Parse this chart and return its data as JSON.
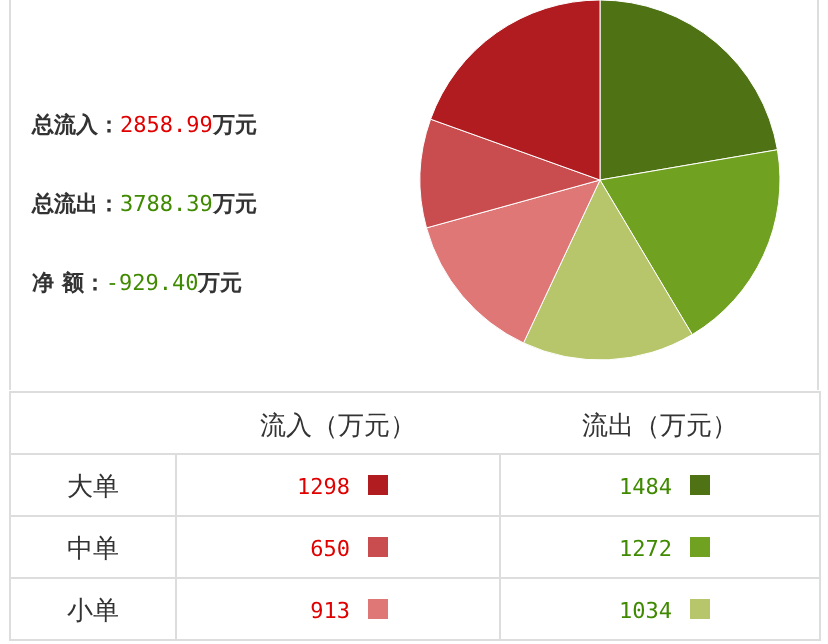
{
  "chart_data": {
    "type": "pie",
    "categories": [
      "1484",
      "1272",
      "1034",
      "913",
      "650",
      "1298"
    ],
    "values": [
      1484,
      1272,
      1034,
      913,
      650,
      1298
    ],
    "colors": [
      "#4f7214",
      "#71a121",
      "#b7c66a",
      "#df7777",
      "#c94d4f",
      "#b01c20"
    ],
    "legend": "bottom",
    "annotations": [
      "总流入：2858.99万元",
      "总流出：3788.39万元",
      "净 额：-929.40万元",
      "流入（万元）",
      "流出（万元）",
      "大单",
      "中单",
      "小单"
    ]
  }
}
